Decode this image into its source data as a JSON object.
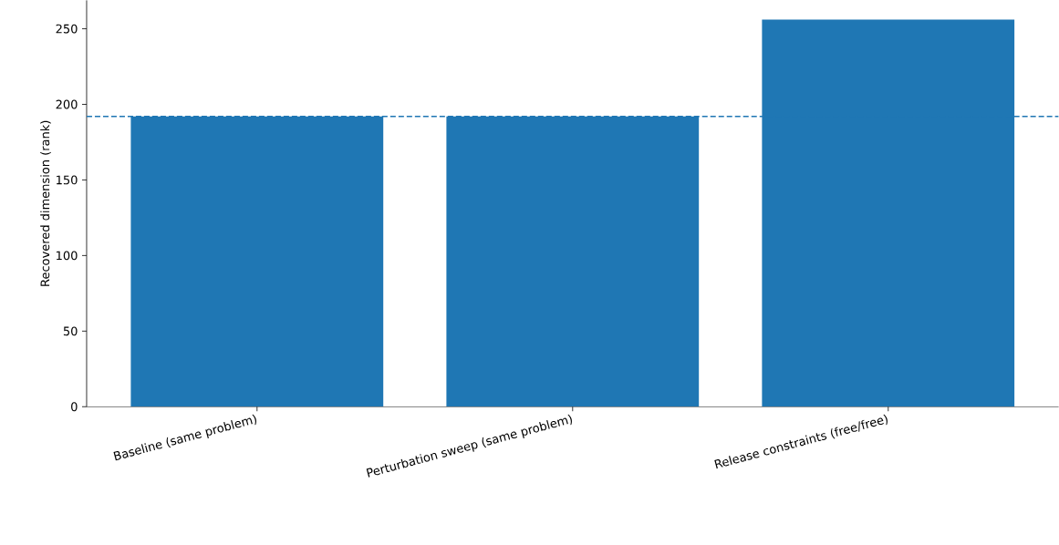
{
  "chart_data": {
    "type": "bar",
    "ylabel": "Recovered dimension (rank)",
    "categories": [
      "Baseline (same problem)",
      "Perturbation sweep (same problem)",
      "Release constraints (free/free)"
    ],
    "values": [
      192,
      192,
      256
    ],
    "color": "#1f77b4",
    "ylim": [
      0,
      268.8
    ],
    "yticks": [
      0,
      50,
      100,
      150,
      200,
      250
    ],
    "grid": false,
    "ref_lines": [
      {
        "axis": "y",
        "value": 192,
        "color": "#1f77b4",
        "line_style": "dashed"
      }
    ]
  }
}
